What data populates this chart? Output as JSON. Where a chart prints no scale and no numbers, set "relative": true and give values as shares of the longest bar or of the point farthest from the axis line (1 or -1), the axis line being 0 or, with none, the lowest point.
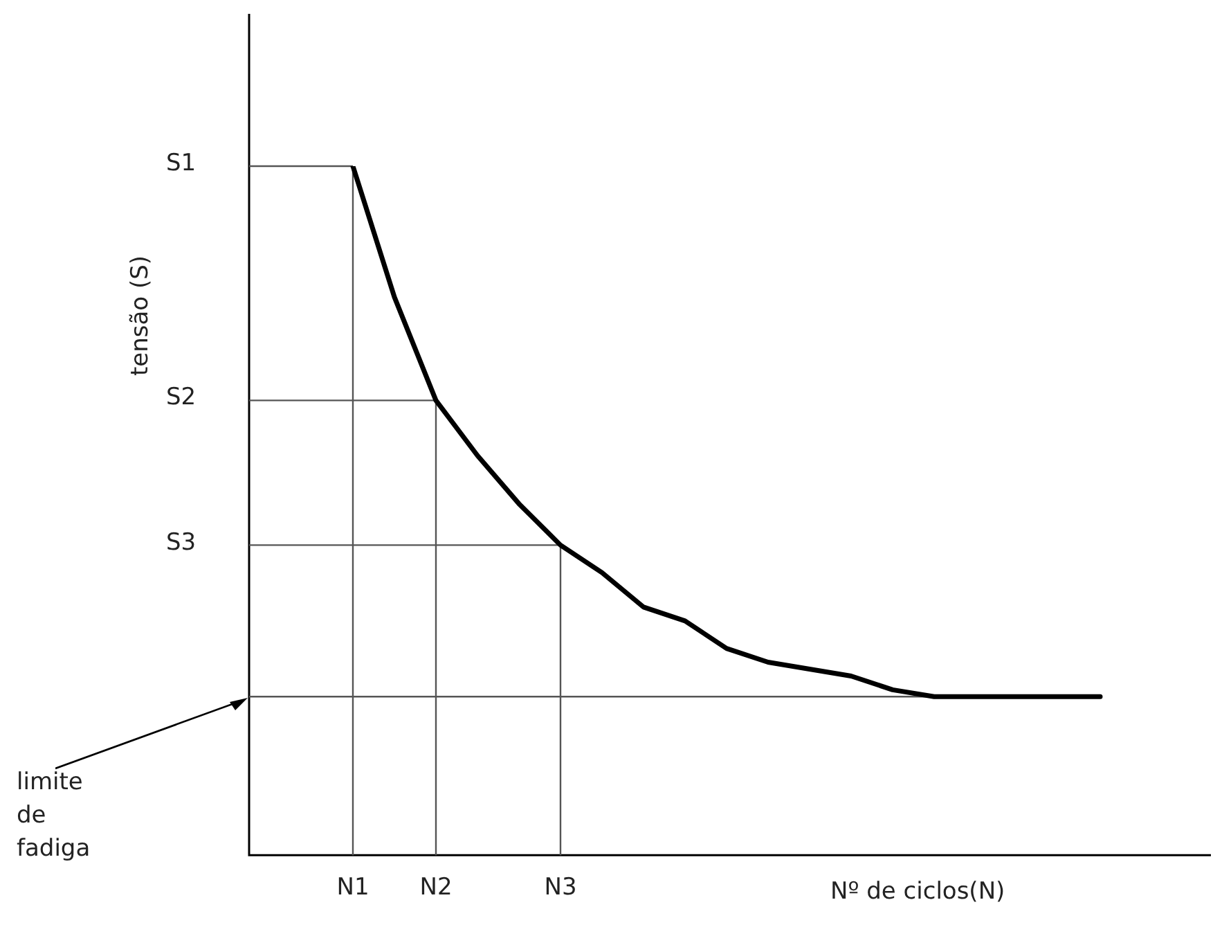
{
  "chart_data": {
    "type": "line",
    "relative": true,
    "ylabel": "tensão (S)",
    "xlabel": "Nº de ciclos(N)",
    "marker": "none",
    "categories": [
      null,
      null,
      "N1",
      null,
      "N2",
      null,
      null,
      "N3",
      null,
      null,
      null,
      null,
      null,
      null,
      null,
      null,
      null,
      null,
      null,
      null,
      null,
      null,
      null
    ],
    "series": [
      {
        "color": "#000000",
        "values": [
          null,
          null,
          1,
          0.81,
          0.66,
          0.58,
          0.51,
          0.45,
          0.41,
          0.36,
          0.34,
          0.3,
          0.28,
          0.27,
          0.26,
          0.24,
          0.23,
          0.23,
          0.23,
          0.23,
          0.23,
          null,
          null
        ]
      }
    ],
    "ref_lines": [
      {
        "axis": "y",
        "value": 1,
        "label": "S1"
      },
      {
        "axis": "y",
        "value": 0.66,
        "label": "S2"
      },
      {
        "axis": "y",
        "value": 0.45,
        "label": "S3"
      },
      {
        "axis": "y",
        "value": 0.23,
        "label": "limite de fadiga"
      },
      {
        "axis": "x",
        "value": "N1"
      },
      {
        "axis": "x",
        "value": "N2"
      },
      {
        "axis": "x",
        "value": "N3"
      }
    ]
  }
}
